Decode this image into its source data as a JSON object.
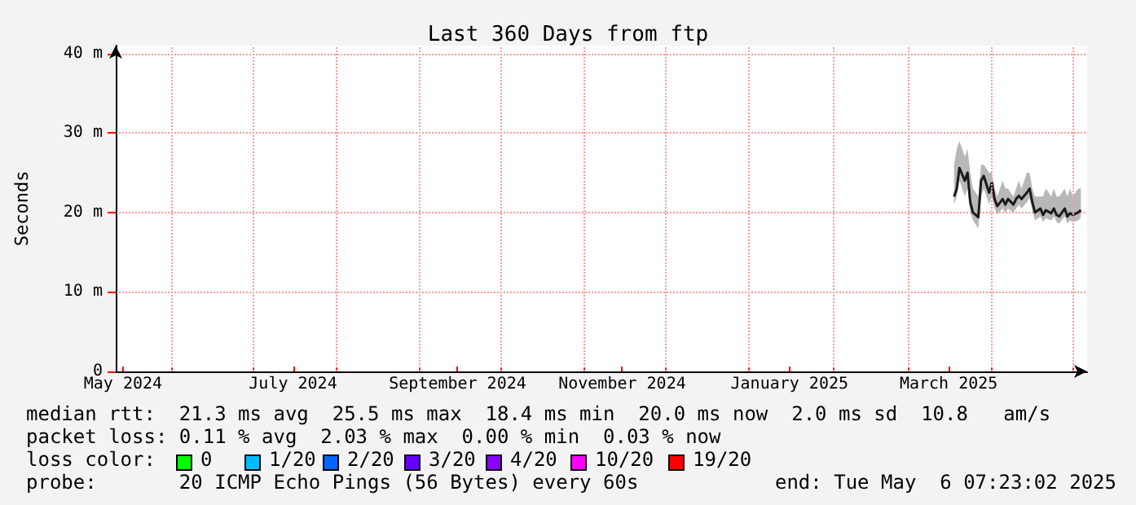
{
  "chart_data": {
    "type": "line",
    "title": "Last 360 Days from ftp",
    "ylabel": "Seconds",
    "xlim": [
      "2024-05-11T07:23",
      "2025-05-06T07:23"
    ],
    "xticks": [
      {
        "value": "2024-05-14",
        "label": "May 2024"
      },
      {
        "value": "2024-06-01",
        "label": null
      },
      {
        "value": "2024-07-01",
        "label": null
      },
      {
        "value": "2024-07-16",
        "label": "July 2024"
      },
      {
        "value": "2024-08-01",
        "label": null
      },
      {
        "value": "2024-09-01",
        "label": null
      },
      {
        "value": "2024-09-15",
        "label": "September 2024"
      },
      {
        "value": "2024-10-01",
        "label": null
      },
      {
        "value": "2024-11-01",
        "label": null
      },
      {
        "value": "2024-11-15",
        "label": "November 2024"
      },
      {
        "value": "2024-12-01",
        "label": null
      },
      {
        "value": "2025-01-01",
        "label": null
      },
      {
        "value": "2025-01-16",
        "label": "January 2025"
      },
      {
        "value": "2025-02-01",
        "label": null
      },
      {
        "value": "2025-03-01",
        "label": null
      },
      {
        "value": "2025-03-16",
        "label": "March 2025"
      },
      {
        "value": "2025-04-01",
        "label": null
      },
      {
        "value": "2025-05-01",
        "label": null
      }
    ],
    "ylim": [
      0,
      41
    ],
    "yticks": [
      0,
      {
        "value": 10,
        "label": "10 m"
      },
      {
        "value": 20,
        "label": "20 m"
      },
      {
        "value": 30,
        "label": "30 m"
      },
      {
        "value": 40,
        "label": "40 m"
      }
    ],
    "grid": true,
    "marker": "none",
    "line_style": "solid",
    "series": [
      {
        "color": "#1a1a1a",
        "x": [
          "2025-03-18",
          "2025-03-19",
          "2025-03-20",
          "2025-03-22",
          "2025-03-23",
          "2025-03-24",
          "2025-03-25",
          "2025-03-27",
          "2025-03-28",
          "2025-03-29",
          "2025-03-31",
          "2025-04-01",
          "2025-04-02",
          "2025-04-03",
          "2025-04-05",
          "2025-04-06",
          "2025-04-07",
          "2025-04-09",
          "2025-04-10",
          "2025-04-11",
          "2025-04-12",
          "2025-04-14",
          "2025-04-15",
          "2025-04-16",
          "2025-04-17",
          "2025-04-19",
          "2025-04-20",
          "2025-04-21",
          "2025-04-23",
          "2025-04-24",
          "2025-04-25",
          "2025-04-26",
          "2025-04-28",
          "2025-04-29",
          "2025-04-30",
          "2025-05-01",
          "2025-05-03",
          "2025-05-04"
        ],
        "values": [
          22,
          23,
          25.6,
          24,
          25,
          21.3,
          20,
          19.4,
          24,
          24.6,
          22.5,
          23.8,
          21.7,
          20.8,
          21.7,
          21,
          21.7,
          21,
          21.7,
          22.1,
          21.7,
          22.5,
          23,
          21.3,
          20,
          20.5,
          19.7,
          20.3,
          19.9,
          20.5,
          19.7,
          19.5,
          20.5,
          19.5,
          19.9,
          19.7,
          20,
          20.3
        ],
        "lower": [
          21,
          22,
          24,
          22,
          23,
          20,
          19,
          18,
          22,
          23,
          21,
          22,
          20.5,
          19.8,
          20.5,
          20,
          20.5,
          20,
          20.5,
          21,
          20.5,
          21.3,
          21.8,
          20.3,
          19,
          19.5,
          18.8,
          19.3,
          19,
          19.5,
          18.8,
          18.6,
          19.5,
          18.6,
          19,
          18.8,
          19,
          19.4
        ],
        "upper": [
          26,
          28,
          29,
          27,
          28,
          25,
          23,
          22,
          26,
          26,
          25,
          25,
          23,
          22,
          24,
          23,
          23,
          22,
          23,
          24,
          23,
          25,
          25,
          23,
          22,
          22,
          22,
          23,
          22,
          23,
          22,
          22,
          23,
          22,
          23,
          22,
          23,
          23
        ]
      }
    ],
    "annotations": [
      "median rtt:  21.3 ms avg  25.5 ms max  18.4 ms min  20.0 ms now  2.0 ms sd  10.8   am/s",
      "packet loss: 0.11 % avg  2.03 % max  0.00 % min  0.03 % now",
      "loss color:",
      "0",
      "1/20",
      "2/20",
      "3/20",
      "4/20",
      "10/20",
      "19/20",
      "probe:       20 ICMP Echo Pings (56 Bytes) every 60s",
      "end: Tue May  6 07:23:02 2025"
    ]
  }
}
